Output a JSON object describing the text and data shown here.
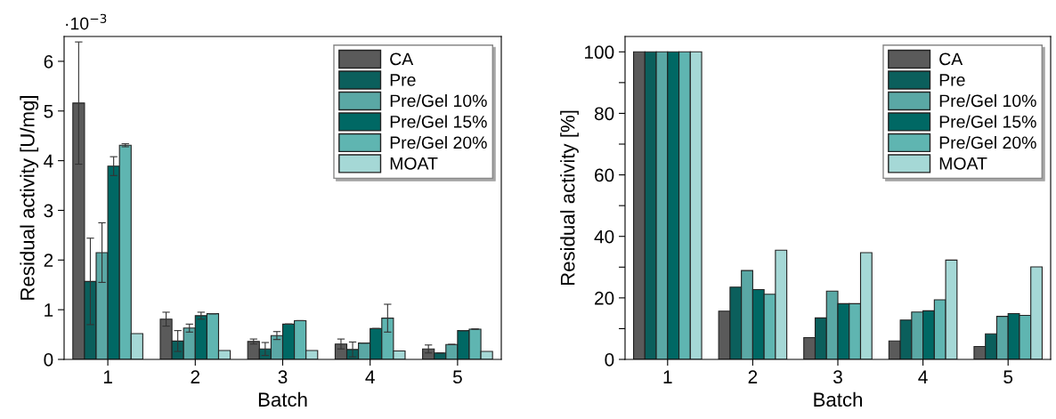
{
  "chart_data": [
    {
      "type": "bar",
      "categories": [
        "1",
        "2",
        "3",
        "4",
        "5"
      ],
      "xlabel": "Batch",
      "ylabel": "Residual activity [U/mg]",
      "ylim": [
        0,
        6.5
      ],
      "yticks": [
        0,
        1,
        2,
        3,
        4,
        5,
        6
      ],
      "annotations": [
        "·10$^{−3}$"
      ],
      "legend": "top right",
      "grid": false,
      "series": [
        {
          "name": "CA",
          "color": "#5a5a5a",
          "values": [
            5.16,
            0.81,
            0.36,
            0.31,
            0.21
          ],
          "errors": [
            1.23,
            0.14,
            0.05,
            0.1,
            0.08
          ]
        },
        {
          "name": "Pre",
          "color": "#0b5f5c",
          "values": [
            1.57,
            0.37,
            0.21,
            0.2,
            0.13
          ],
          "errors": [
            0.87,
            0.21,
            0.13,
            0.15,
            null
          ]
        },
        {
          "name": "Pre/Gel 10%",
          "color": "#5aa8a5",
          "values": [
            2.15,
            0.63,
            0.48,
            0.33,
            0.3
          ],
          "errors": [
            0.6,
            0.08,
            0.08,
            null,
            null
          ]
        },
        {
          "name": "Pre/Gel 15%",
          "color": "#006864",
          "values": [
            3.89,
            0.88,
            0.71,
            0.62,
            0.58
          ],
          "errors": [
            0.19,
            0.07,
            null,
            null,
            null
          ]
        },
        {
          "name": "Pre/Gel 20%",
          "color": "#5fb5b1",
          "values": [
            4.31,
            0.92,
            0.78,
            0.83,
            0.61
          ],
          "errors": [
            0.03,
            null,
            null,
            0.28,
            null
          ]
        },
        {
          "name": "MOAT",
          "color": "#a5d8d6",
          "values": [
            0.52,
            0.18,
            0.18,
            0.17,
            0.16
          ]
        }
      ]
    },
    {
      "type": "bar",
      "categories": [
        "1",
        "2",
        "3",
        "4",
        "5"
      ],
      "xlabel": "Batch",
      "ylabel": "Residual activity [%]",
      "ylim": [
        0,
        105
      ],
      "yticks": [
        0,
        {
          "value": 10,
          "label": null
        },
        20,
        {
          "value": 30,
          "label": null
        },
        40,
        {
          "value": 50,
          "label": null
        },
        60,
        {
          "value": 70,
          "label": null
        },
        80,
        {
          "value": 90,
          "label": null
        },
        100
      ],
      "legend": "top right",
      "grid": false,
      "series": [
        {
          "name": "CA",
          "color": "#5a5a5a",
          "values": [
            100,
            15.7,
            7.1,
            6.0,
            4.2
          ]
        },
        {
          "name": "Pre",
          "color": "#0b5f5c",
          "values": [
            100,
            23.5,
            13.5,
            12.8,
            8.3
          ]
        },
        {
          "name": "Pre/Gel 10%",
          "color": "#5aa8a5",
          "values": [
            100,
            28.9,
            22.2,
            15.4,
            14.0
          ]
        },
        {
          "name": "Pre/Gel 15%",
          "color": "#006864",
          "values": [
            100,
            22.7,
            18.1,
            15.8,
            14.9
          ]
        },
        {
          "name": "Pre/Gel 20%",
          "color": "#5fb5b1",
          "values": [
            100,
            21.2,
            18.1,
            19.4,
            14.3
          ]
        },
        {
          "name": "MOAT",
          "color": "#a5d8d6",
          "values": [
            100,
            35.5,
            34.7,
            32.3,
            30.1
          ]
        }
      ]
    }
  ]
}
